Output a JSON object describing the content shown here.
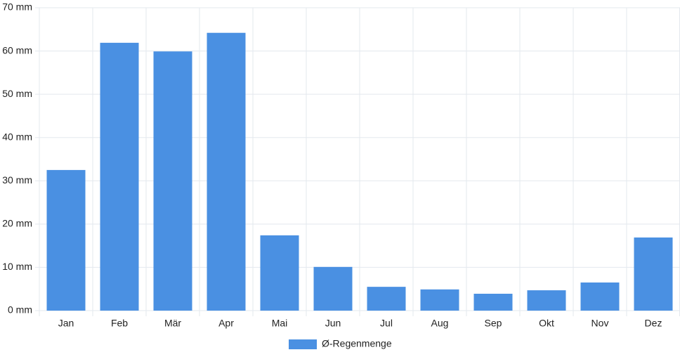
{
  "chart_data": {
    "type": "bar",
    "categories": [
      "Jan",
      "Feb",
      "Mär",
      "Apr",
      "Mai",
      "Jun",
      "Jul",
      "Aug",
      "Sep",
      "Okt",
      "Nov",
      "Dez"
    ],
    "series": [
      {
        "name": "Ø-Regenmenge",
        "color": "#4a90e2",
        "values": [
          32.5,
          61.9,
          59.9,
          64.2,
          17.4,
          10.1,
          5.5,
          4.9,
          3.9,
          4.7,
          6.5,
          16.9
        ]
      }
    ],
    "ylim": [
      0,
      70
    ],
    "yticks": [
      {
        "value": 0,
        "label": "0 mm"
      },
      {
        "value": 10,
        "label": "10 mm"
      },
      {
        "value": 20,
        "label": "20 mm"
      },
      {
        "value": 30,
        "label": "30 mm"
      },
      {
        "value": 40,
        "label": "40 mm"
      },
      {
        "value": 50,
        "label": "50 mm"
      },
      {
        "value": 60,
        "label": "60 mm"
      },
      {
        "value": 70,
        "label": "70 mm"
      }
    ],
    "grid": true,
    "legend": "bottom"
  }
}
